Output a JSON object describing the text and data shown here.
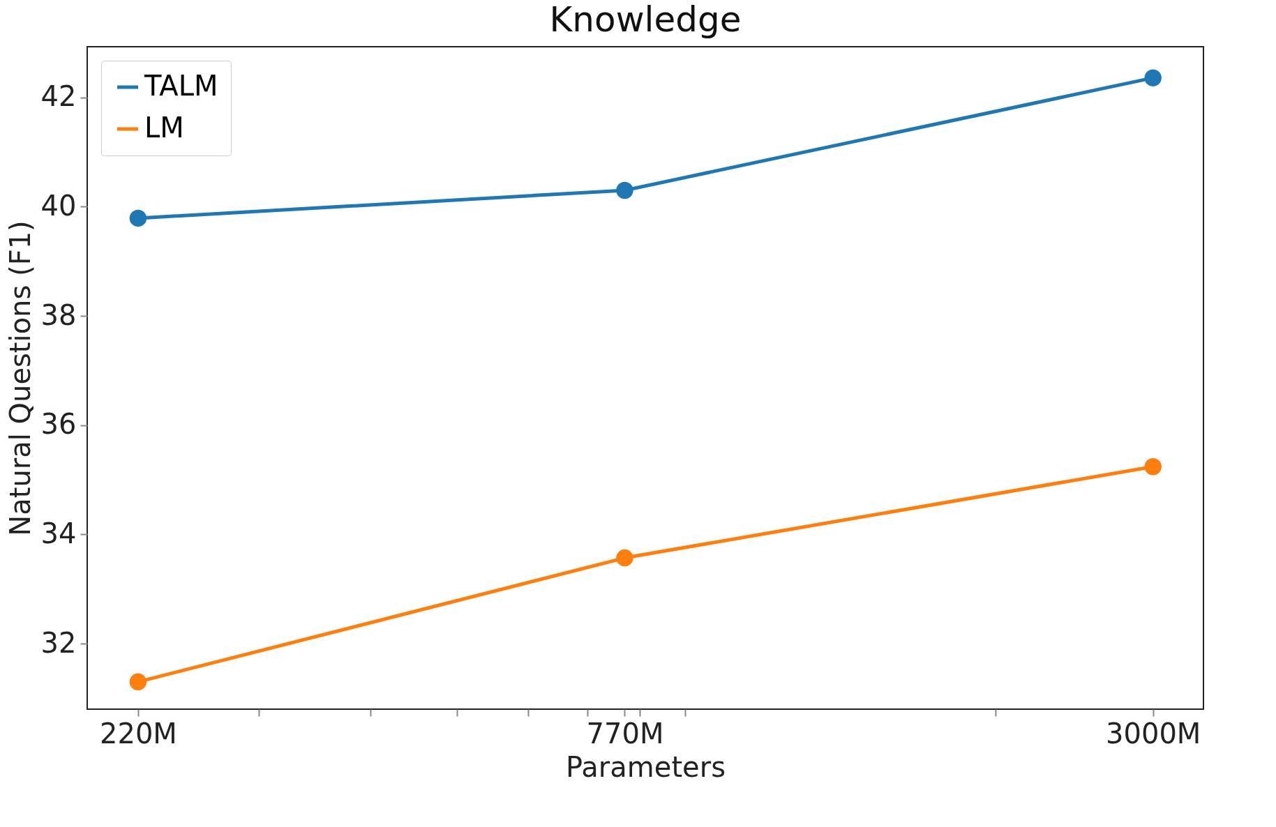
{
  "chart_data": {
    "type": "line",
    "title": "Knowledge",
    "xlabel": "Parameters",
    "ylabel": "Natural Questions (F1)",
    "x": [
      220,
      770,
      3000
    ],
    "series": [
      {
        "name": "TALM",
        "color": "#1f77b4",
        "values": [
          39.79,
          40.3,
          42.36
        ]
      },
      {
        "name": "LM",
        "color": "#ff7f0e",
        "values": [
          31.3,
          33.57,
          35.24
        ]
      }
    ],
    "log": "x",
    "xlim": [
      193,
      3416
    ],
    "ylim": [
      30.8,
      42.93
    ],
    "xticks": [
      {
        "value": 220,
        "label": "220M"
      },
      {
        "value": 300,
        "label": null
      },
      {
        "value": 400,
        "label": null
      },
      {
        "value": 500,
        "label": null
      },
      {
        "value": 600,
        "label": null
      },
      {
        "value": 700,
        "label": null
      },
      {
        "value": 770,
        "label": "770M"
      },
      {
        "value": 800,
        "label": null
      },
      {
        "value": 900,
        "label": null
      },
      {
        "value": 2000,
        "label": null
      },
      {
        "value": 3000,
        "label": "3000M"
      }
    ],
    "yticks": [
      32,
      34,
      36,
      38,
      40,
      42
    ],
    "grid": false,
    "legend": "top left",
    "marker": "circle",
    "line_style": "solid"
  }
}
